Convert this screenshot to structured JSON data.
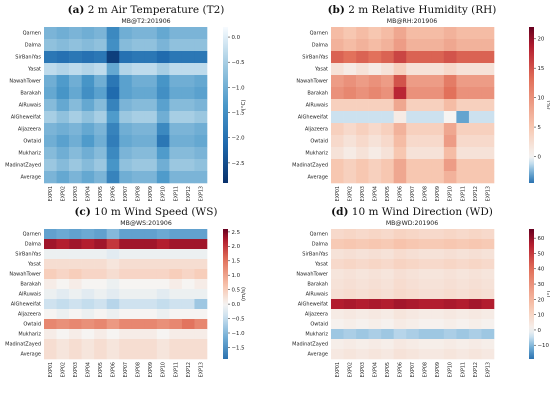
{
  "rows": [
    "Qarnen",
    "Dalma",
    "SirBaniYas",
    "Yasat",
    "NawahTower",
    "Barakah",
    "AlRuwais",
    "AlGheweifat",
    "Aljazeera",
    "Owtaid",
    "Mukhariz",
    "MadinatZayed",
    "Average"
  ],
  "columns": [
    "EXP01",
    "EXP02",
    "EXP03",
    "EXP04",
    "EXP05",
    "EXP06",
    "EXP07",
    "EXP08",
    "EXP09",
    "EXP10",
    "EXP11",
    "EXP12",
    "EXP13"
  ],
  "chart_data": [
    {
      "type": "heatmap",
      "label_letter": "(a)",
      "title": "2 m Air Temperature (T2)",
      "subtitle": "MB@T2:201906",
      "unit": "(°C)",
      "colormap": "blues",
      "vmin": -2.9,
      "vmax": 0.2,
      "colorbar_ticks": [
        0.0,
        -0.5,
        -1.0,
        -1.5,
        -2.0,
        -2.5
      ],
      "colorbar_tick_labels": [
        "0.0",
        "−0.5",
        "−1.0",
        "−1.5",
        "−2.0",
        "−2.5"
      ],
      "values": [
        [
          -0.9,
          -1.0,
          -0.9,
          -1.0,
          -0.9,
          -1.6,
          -1.0,
          -0.9,
          -0.9,
          -1.1,
          -0.9,
          -0.9,
          -0.9
        ],
        [
          -0.7,
          -0.8,
          -0.7,
          -0.8,
          -0.7,
          -1.5,
          -0.8,
          -0.7,
          -0.7,
          -0.9,
          -0.7,
          -0.7,
          -0.7
        ],
        [
          -1.9,
          -2.0,
          -1.9,
          -2.0,
          -1.9,
          -2.7,
          -2.0,
          -1.9,
          -1.9,
          -2.1,
          -1.9,
          -1.9,
          -1.9
        ],
        [
          -0.3,
          -0.4,
          -0.3,
          -0.4,
          -0.3,
          -1.1,
          -0.4,
          -0.3,
          -0.3,
          -0.5,
          -0.3,
          -0.3,
          -0.3
        ],
        [
          -1.0,
          -1.3,
          -1.0,
          -1.4,
          -1.0,
          -1.9,
          -1.2,
          -1.0,
          -1.0,
          -1.4,
          -1.0,
          -1.0,
          -1.1
        ],
        [
          -1.1,
          -1.4,
          -1.1,
          -1.5,
          -1.2,
          -2.1,
          -1.2,
          -1.1,
          -1.1,
          -1.5,
          -1.1,
          -1.1,
          -1.2
        ],
        [
          -0.8,
          -1.1,
          -0.8,
          -1.1,
          -0.8,
          -1.7,
          -0.9,
          -0.8,
          -0.8,
          -1.2,
          -0.8,
          -0.8,
          -0.9
        ],
        [
          -0.5,
          -0.7,
          -0.5,
          -0.7,
          -0.5,
          -1.3,
          -0.6,
          -0.5,
          -0.5,
          -1.0,
          -0.5,
          -0.5,
          -0.6
        ],
        [
          -0.9,
          -1.0,
          -0.9,
          -1.1,
          -0.9,
          -1.7,
          -1.0,
          -0.9,
          -0.9,
          -1.6,
          -0.9,
          -0.9,
          -1.0
        ],
        [
          -1.0,
          -1.2,
          -1.0,
          -1.3,
          -1.0,
          -1.8,
          -1.1,
          -1.0,
          -1.0,
          -1.9,
          -1.0,
          -1.0,
          -1.1
        ],
        [
          -0.8,
          -1.0,
          -0.8,
          -1.0,
          -0.8,
          -1.6,
          -0.9,
          -0.8,
          -0.8,
          -1.3,
          -0.8,
          -0.8,
          -0.9
        ],
        [
          -0.6,
          -0.8,
          -0.6,
          -0.8,
          -0.6,
          -1.4,
          -0.7,
          -0.6,
          -0.6,
          -1.0,
          -0.6,
          -0.6,
          -0.7
        ],
        [
          -0.9,
          -1.1,
          -0.9,
          -1.1,
          -0.9,
          -1.7,
          -1.0,
          -0.9,
          -0.9,
          -1.3,
          -0.9,
          -0.9,
          -0.9
        ]
      ]
    },
    {
      "type": "heatmap",
      "label_letter": "(b)",
      "title": "2 m Relative Humidity (RH)",
      "subtitle": "MB@RH:201906",
      "unit": "(%)",
      "colormap": "diverging",
      "vmin": -4.5,
      "vmax": 22,
      "colorbar_ticks": [
        20,
        15,
        10,
        5,
        0
      ],
      "colorbar_tick_labels": [
        "20",
        "15",
        "10",
        "5",
        "0"
      ],
      "values": [
        [
          6,
          5,
          6,
          5,
          6,
          8,
          6,
          6,
          6,
          7,
          6,
          6,
          6
        ],
        [
          7,
          6,
          7,
          6,
          7,
          9,
          7,
          7,
          7,
          8,
          7,
          7,
          7
        ],
        [
          14,
          13,
          14,
          13,
          14,
          16,
          14,
          14,
          14,
          15,
          14,
          14,
          14
        ],
        [
          2,
          1,
          2,
          1,
          2,
          4,
          2,
          2,
          2,
          3,
          2,
          2,
          2
        ],
        [
          9,
          10,
          9,
          10,
          9,
          15,
          9,
          9,
          9,
          12,
          9,
          9,
          9
        ],
        [
          10,
          11,
          10,
          11,
          10,
          18,
          10,
          10,
          10,
          13,
          10,
          10,
          10
        ],
        [
          4,
          4,
          4,
          4,
          4,
          8,
          4,
          4,
          4,
          6,
          4,
          4,
          4
        ],
        [
          -1,
          -1,
          -1,
          -1,
          -1,
          1,
          -1,
          -1,
          -1,
          0,
          -3,
          -1,
          -1
        ],
        [
          4,
          3,
          4,
          3,
          4,
          7,
          4,
          4,
          4,
          8,
          4,
          4,
          4
        ],
        [
          3,
          2,
          3,
          2,
          3,
          6,
          3,
          3,
          3,
          9,
          3,
          3,
          3
        ],
        [
          2,
          1,
          2,
          1,
          2,
          5,
          2,
          2,
          2,
          6,
          2,
          2,
          2
        ],
        [
          5,
          4,
          5,
          4,
          5,
          8,
          5,
          5,
          5,
          9,
          5,
          5,
          5
        ],
        [
          5,
          4,
          5,
          4,
          5,
          8,
          5,
          5,
          5,
          7,
          5,
          5,
          5
        ]
      ]
    },
    {
      "type": "heatmap",
      "label_letter": "(c)",
      "title": "10 m Wind Speed (WS)",
      "subtitle": "MB@WS:201906",
      "unit": "(m/s)",
      "colormap": "diverging",
      "vmin": -1.9,
      "vmax": 2.6,
      "colorbar_ticks": [
        2.5,
        2.0,
        1.5,
        1.0,
        0.5,
        0.0,
        -0.5,
        -1.0,
        -1.5
      ],
      "colorbar_tick_labels": [
        "2.5",
        "2.0",
        "1.5",
        "1.0",
        "0.5",
        "0.0",
        "−0.5",
        "−1.0",
        "−1.5"
      ],
      "values": [
        [
          -1.3,
          -1.2,
          -1.3,
          -1.2,
          -1.3,
          -1.0,
          -1.3,
          -1.3,
          -1.3,
          -1.2,
          -1.3,
          -1.3,
          -1.3
        ],
        [
          2.3,
          2.2,
          2.3,
          2.2,
          2.3,
          2.0,
          2.3,
          2.3,
          2.3,
          2.2,
          2.3,
          2.3,
          2.3
        ],
        [
          -0.1,
          -0.1,
          -0.1,
          -0.1,
          -0.1,
          -0.2,
          -0.1,
          -0.1,
          -0.1,
          -0.1,
          -0.1,
          -0.1,
          -0.1
        ],
        [
          0.3,
          0.3,
          0.3,
          0.3,
          0.3,
          0.2,
          0.3,
          0.3,
          0.3,
          0.3,
          0.3,
          0.3,
          0.3
        ],
        [
          0.5,
          0.4,
          0.5,
          0.4,
          0.4,
          0.3,
          0.4,
          0.4,
          0.4,
          0.4,
          0.5,
          0.4,
          0.5
        ],
        [
          0.1,
          0.0,
          0.1,
          0.0,
          0.0,
          -0.1,
          0.0,
          0.0,
          0.0,
          0.0,
          0.1,
          0.0,
          0.1
        ],
        [
          -0.1,
          -0.2,
          -0.1,
          -0.2,
          -0.1,
          -0.2,
          -0.1,
          -0.1,
          -0.1,
          -0.2,
          -0.1,
          -0.1,
          -0.1
        ],
        [
          -0.4,
          -0.5,
          -0.4,
          -0.5,
          -0.4,
          -0.6,
          -0.4,
          -0.4,
          -0.4,
          -0.5,
          -0.4,
          -0.4,
          -0.8
        ],
        [
          0.0,
          -0.1,
          0.0,
          -0.1,
          0.0,
          -0.1,
          0.0,
          0.0,
          0.0,
          -0.1,
          0.0,
          0.0,
          0.0
        ],
        [
          1.3,
          1.2,
          1.3,
          1.2,
          1.3,
          1.1,
          1.3,
          1.3,
          1.3,
          1.2,
          1.3,
          1.5,
          1.3
        ],
        [
          0.1,
          0.0,
          0.1,
          0.0,
          0.1,
          0.0,
          0.1,
          0.1,
          0.1,
          0.0,
          0.1,
          0.1,
          0.1
        ],
        [
          0.3,
          0.2,
          0.3,
          0.2,
          0.3,
          0.2,
          0.3,
          0.3,
          0.3,
          0.2,
          0.3,
          0.3,
          0.3
        ],
        [
          0.3,
          0.2,
          0.3,
          0.2,
          0.3,
          0.2,
          0.3,
          0.3,
          0.3,
          0.2,
          0.3,
          0.3,
          0.3
        ]
      ]
    },
    {
      "type": "heatmap",
      "label_letter": "(d)",
      "title": "10 m Wind Direction (WD)",
      "subtitle": "MB@WD:201906",
      "unit": "(°)",
      "colormap": "diverging",
      "vmin": -19,
      "vmax": 66,
      "colorbar_ticks": [
        60,
        50,
        40,
        30,
        20,
        10,
        0,
        -10
      ],
      "colorbar_tick_labels": [
        "60",
        "50",
        "40",
        "30",
        "20",
        "10",
        "0",
        "−10"
      ],
      "values": [
        [
          9,
          10,
          9,
          10,
          9,
          11,
          10,
          9,
          9,
          10,
          9,
          10,
          9
        ],
        [
          14,
          15,
          14,
          15,
          14,
          16,
          15,
          14,
          14,
          15,
          14,
          15,
          14
        ],
        [
          6,
          7,
          6,
          7,
          6,
          8,
          7,
          6,
          6,
          7,
          6,
          7,
          6
        ],
        [
          9,
          10,
          9,
          10,
          9,
          11,
          10,
          9,
          9,
          10,
          9,
          10,
          9
        ],
        [
          5,
          6,
          5,
          6,
          5,
          7,
          6,
          5,
          5,
          6,
          5,
          6,
          5
        ],
        [
          6,
          7,
          6,
          7,
          6,
          8,
          7,
          6,
          6,
          7,
          6,
          7,
          6
        ],
        [
          7,
          8,
          7,
          8,
          7,
          9,
          8,
          7,
          7,
          8,
          7,
          8,
          7
        ],
        [
          56,
          57,
          56,
          57,
          56,
          58,
          57,
          56,
          56,
          57,
          56,
          58,
          56
        ],
        [
          3,
          4,
          3,
          4,
          3,
          5,
          4,
          3,
          3,
          4,
          3,
          4,
          3
        ],
        [
          1,
          2,
          1,
          2,
          1,
          3,
          2,
          1,
          1,
          2,
          1,
          2,
          1
        ],
        [
          -8,
          -7,
          -8,
          -7,
          -8,
          -6,
          -7,
          -8,
          -8,
          -7,
          -8,
          -7,
          -8
        ],
        [
          2,
          3,
          2,
          3,
          2,
          4,
          3,
          2,
          2,
          3,
          2,
          3,
          2
        ],
        [
          4,
          5,
          4,
          5,
          4,
          6,
          5,
          4,
          4,
          5,
          4,
          5,
          4
        ]
      ]
    }
  ]
}
